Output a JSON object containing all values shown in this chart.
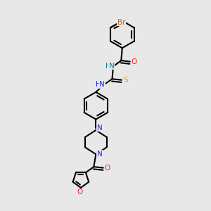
{
  "bg_color": "#e8e8e8",
  "atom_colors": {
    "C": "#000000",
    "N": "#2020ff",
    "O": "#ff2020",
    "S": "#ccaa00",
    "Br": "#cc6600",
    "HN": "#008080"
  },
  "bond_lw": 1.5,
  "font_size": 7.5,
  "figsize": [
    3.0,
    3.0
  ],
  "dpi": 100
}
